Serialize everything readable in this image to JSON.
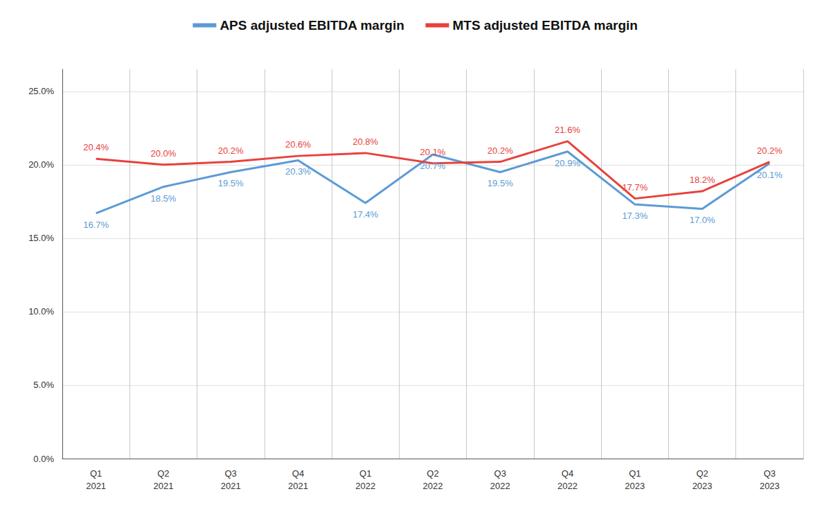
{
  "chart_data": {
    "type": "line",
    "categories": [
      "Q1\n2021",
      "Q2\n2021",
      "Q3\n2021",
      "Q4\n2021",
      "Q1\n2022",
      "Q2\n2022",
      "Q3\n2022",
      "Q4\n2022",
      "Q1\n2023",
      "Q2\n2023",
      "Q3\n2023"
    ],
    "series": [
      {
        "name": "APS adjusted EBITDA margin",
        "color": "#5B9BD5",
        "values": [
          16.7,
          18.5,
          19.5,
          20.3,
          17.4,
          20.7,
          19.5,
          20.9,
          17.3,
          17.0,
          20.1
        ],
        "value_labels": [
          "16.7%",
          "18.5%",
          "19.5%",
          "20.3%",
          "17.4%",
          "20.7%",
          "19.5%",
          "20.9%",
          "17.3%",
          "17.0%",
          "20.1%"
        ]
      },
      {
        "name": "MTS adjusted EBITDA margin",
        "color": "#E8413C",
        "values": [
          20.4,
          20.0,
          20.2,
          20.6,
          20.8,
          20.1,
          20.2,
          21.6,
          17.7,
          18.2,
          20.2
        ],
        "value_labels": [
          "20.4%",
          "20.0%",
          "20.2%",
          "20.6%",
          "20.8%",
          "20.1%",
          "20.2%",
          "21.6%",
          "17.7%",
          "18.2%",
          "20.2%"
        ]
      }
    ],
    "ylim": [
      0,
      26.5
    ],
    "yticks": [
      {
        "value": 0,
        "label": "0.0%"
      },
      {
        "value": 5,
        "label": "5.0%"
      },
      {
        "value": 10,
        "label": "10.0%"
      },
      {
        "value": 15,
        "label": "15.0%"
      },
      {
        "value": 20,
        "label": "20.0%"
      },
      {
        "value": 25,
        "label": "25.0%"
      }
    ],
    "grid": true,
    "legend": "top",
    "data_labels": true
  }
}
